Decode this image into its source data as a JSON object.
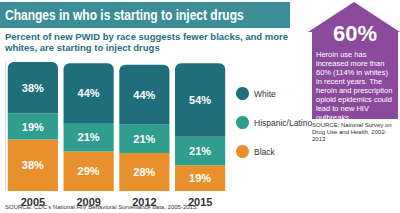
{
  "chart_data": {
    "type": "bar",
    "title": "Changes in who is starting to inject drugs",
    "subtitle": "Percent of new PWID by race suggests fewer blacks, and more whites, are starting to inject drugs",
    "source": "SOURCE: CDC's National HIV Behavioral Surveillance data, 2005-2015.",
    "categories": [
      "2005",
      "2009",
      "2012",
      "2015"
    ],
    "series": [
      {
        "name": "White",
        "color": "#1f6e7c",
        "values": [
          38,
          44,
          44,
          54
        ],
        "value_labels": [
          "38%",
          "44%",
          "44%",
          "54%"
        ]
      },
      {
        "name": "Hispanic/Latino",
        "color": "#2f9e8f",
        "values": [
          19,
          21,
          21,
          21
        ],
        "value_labels": [
          "19%",
          "21%",
          "21%",
          "21%"
        ]
      },
      {
        "name": "Black",
        "color": "#e8902c",
        "values": [
          38,
          29,
          28,
          19
        ],
        "value_labels": [
          "38%",
          "29%",
          "28%",
          "19%"
        ]
      }
    ],
    "stacked": true,
    "data_labels": true,
    "legend": "right",
    "tick_labels": "x",
    "grid": false,
    "ylim": [
      0,
      95
    ],
    "annotations": [
      "60%",
      "Heroin use has increased more than 60% (114% in whites) in recent years. The heroin and prescription opioid epidemics could lead to new HIV outbreaks.",
      "SOURCE: National Survey on Drug Use and Health, 2002-2013"
    ]
  }
}
